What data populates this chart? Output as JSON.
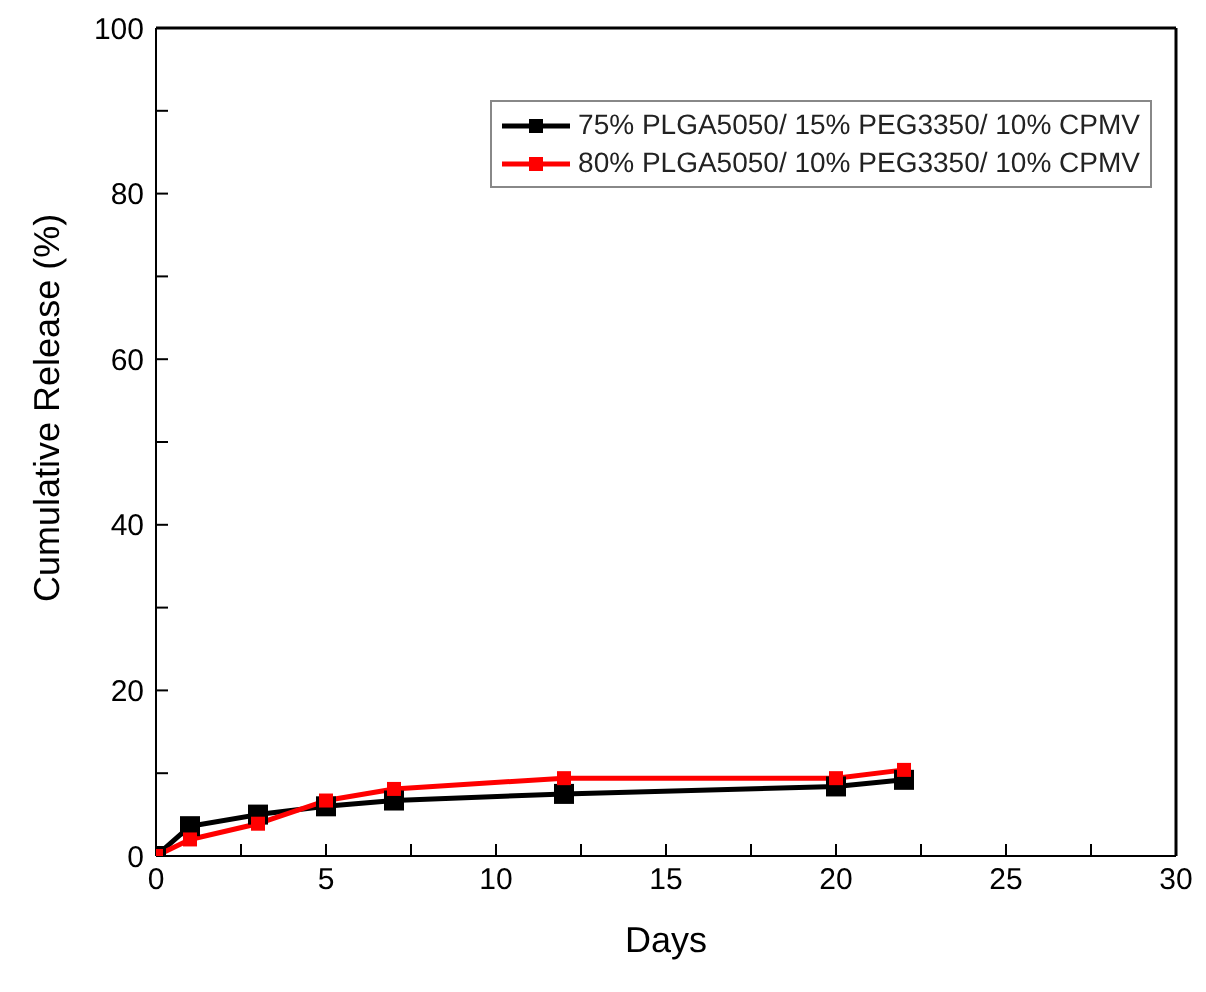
{
  "chart_data": {
    "type": "line",
    "xlabel": "Days",
    "ylabel": "Cumulative Release (%)",
    "xlim": [
      0,
      30
    ],
    "xticks": [
      0,
      {
        "value": 2.5,
        "label": null
      },
      5,
      {
        "value": 7.5,
        "label": null
      },
      10,
      {
        "value": 12.5,
        "label": null
      },
      15,
      {
        "value": 17.5,
        "label": null
      },
      20,
      {
        "value": 22.5,
        "label": null
      },
      25,
      {
        "value": 27.5,
        "label": null
      },
      30
    ],
    "ylim": [
      0,
      100
    ],
    "yticks": [
      0,
      {
        "value": 10,
        "label": null
      },
      20,
      {
        "value": 30,
        "label": null
      },
      40,
      {
        "value": 50,
        "label": null
      },
      60,
      {
        "value": 70,
        "label": null
      },
      80,
      {
        "value": 90,
        "label": null
      },
      100
    ],
    "x": [
      0,
      1,
      3,
      5,
      7,
      12,
      20,
      22
    ],
    "series": [
      {
        "name": "75% PLGA5050/ 15% PEG3350/ 10% CPMV",
        "color": "#000000",
        "values": [
          0,
          3.6,
          5.0,
          6.0,
          6.7,
          7.5,
          8.4,
          9.2
        ]
      },
      {
        "name": "80% PLGA5050/ 10% PEG3350/ 10% CPMV",
        "color": "#ff0000",
        "values": [
          0,
          2.0,
          3.9,
          6.7,
          8.1,
          9.4,
          9.4,
          10.4
        ]
      }
    ],
    "marker": "square",
    "grid": false,
    "legend": "top right"
  }
}
